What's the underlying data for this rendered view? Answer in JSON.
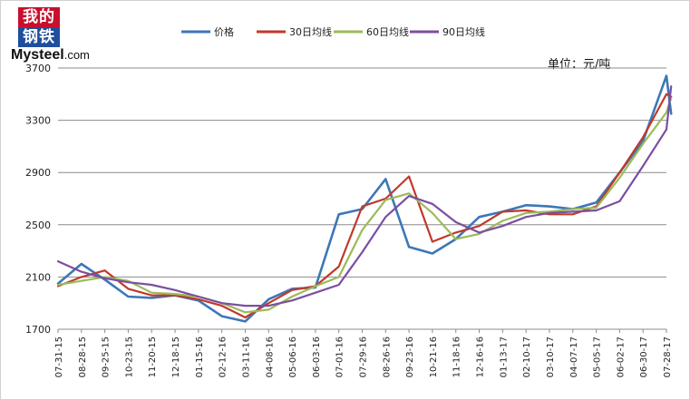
{
  "logo": {
    "line1": "我的",
    "line2": "钢铁",
    "brand": "Mysteel",
    "domain": ".com"
  },
  "unit_label": "单位：元/吨",
  "chart_data": {
    "type": "line",
    "title": "",
    "xlabel": "",
    "ylabel": "",
    "ylim": [
      1700,
      3700
    ],
    "yticks": [
      1700,
      2100,
      2500,
      2900,
      3300,
      3700
    ],
    "grid": true,
    "legend_position": "top",
    "xtick_labels": [
      "07-31-15",
      "08-28-15",
      "09-25-15",
      "10-23-15",
      "11-20-15",
      "12-18-15",
      "01-15-16",
      "02-12-16",
      "03-11-16",
      "04-08-16",
      "05-06-16",
      "06-03-16",
      "07-01-16",
      "07-29-16",
      "08-26-16",
      "09-23-16",
      "10-21-16",
      "11-18-16",
      "12-16-16",
      "01-13-17",
      "02-10-17",
      "03-10-17",
      "04-07-17",
      "05-05-17",
      "06-02-17",
      "06-30-17",
      "07-28-17"
    ],
    "x": [
      0,
      1,
      2,
      3,
      4,
      5,
      6,
      7,
      8,
      9,
      10,
      11,
      12,
      13,
      14,
      15,
      16,
      17,
      18,
      19,
      20,
      21,
      22,
      23,
      24,
      25,
      26,
      26.2
    ],
    "series": [
      {
        "name": "价格",
        "color": "#3c77b8",
        "values": [
          2050,
          2200,
          2080,
          1950,
          1940,
          1960,
          1920,
          1800,
          1760,
          1930,
          2010,
          2020,
          2580,
          2620,
          2850,
          2330,
          2280,
          2390,
          2560,
          2600,
          2650,
          2640,
          2620,
          2670,
          2900,
          3140,
          3640,
          3350
        ]
      },
      {
        "name": "30日均线",
        "color": "#c0392b",
        "values": [
          2030,
          2100,
          2150,
          2010,
          1960,
          1960,
          1930,
          1880,
          1790,
          1900,
          2000,
          2030,
          2180,
          2640,
          2700,
          2870,
          2370,
          2440,
          2490,
          2600,
          2610,
          2580,
          2580,
          2640,
          2900,
          3170,
          3500,
          3480
        ]
      },
      {
        "name": "60日均线",
        "color": "#9bbb59",
        "values": [
          2040,
          2070,
          2100,
          2070,
          1980,
          1970,
          1950,
          1900,
          1830,
          1850,
          1950,
          2030,
          2100,
          2460,
          2690,
          2740,
          2590,
          2390,
          2430,
          2530,
          2590,
          2600,
          2620,
          2630,
          2860,
          3120,
          3360,
          3470
        ]
      },
      {
        "name": "90日均线",
        "color": "#7b4ea0",
        "values": [
          2220,
          2140,
          2090,
          2060,
          2040,
          2000,
          1950,
          1900,
          1880,
          1880,
          1920,
          1980,
          2040,
          2290,
          2560,
          2720,
          2660,
          2520,
          2440,
          2490,
          2560,
          2590,
          2600,
          2610,
          2680,
          2950,
          3230,
          3560
        ]
      }
    ]
  }
}
